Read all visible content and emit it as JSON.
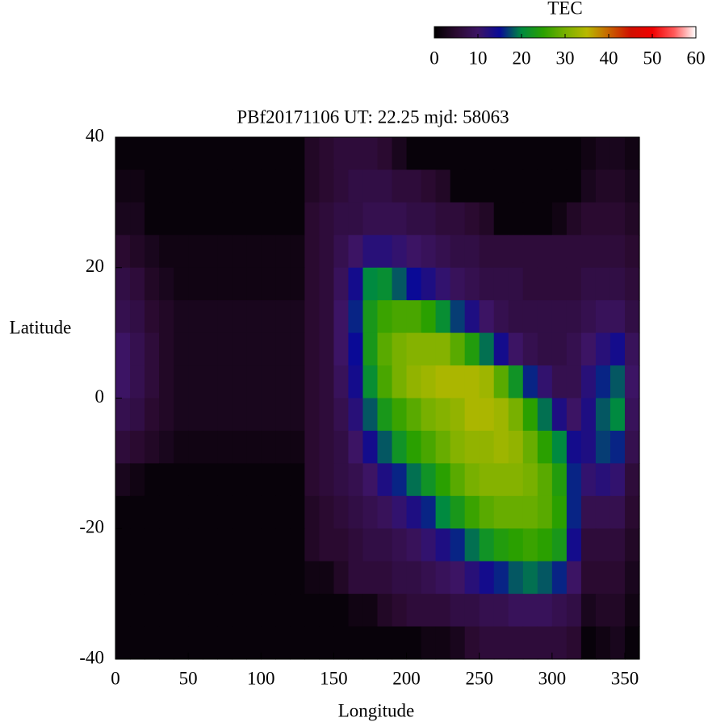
{
  "chart_data": {
    "type": "heatmap",
    "title": "PBf20171106  UT: 22.25  mjd: 58063",
    "xlabel": "Longitude",
    "ylabel": "Latitude",
    "xlim": [
      0,
      360
    ],
    "ylim": [
      -40,
      40
    ],
    "xticks": [
      0,
      50,
      100,
      150,
      200,
      250,
      300,
      350
    ],
    "yticks": [
      -40,
      -20,
      0,
      20,
      40
    ],
    "x": [
      5,
      15,
      25,
      35,
      45,
      55,
      65,
      75,
      85,
      95,
      105,
      115,
      125,
      135,
      145,
      155,
      165,
      175,
      185,
      195,
      205,
      215,
      225,
      235,
      245,
      255,
      265,
      275,
      285,
      295,
      305,
      315,
      325,
      335,
      345,
      355
    ],
    "y": [
      37.5,
      32.5,
      27.5,
      22.5,
      17.5,
      12.5,
      7.5,
      2.5,
      -2.5,
      -7.5,
      -12.5,
      -17.5,
      -22.5,
      -27.5,
      -32.5,
      -37.5
    ],
    "values": [
      [
        1,
        1,
        1,
        1,
        1,
        1,
        1,
        1,
        1,
        1,
        1,
        1,
        1,
        4,
        5,
        6,
        6,
        6,
        5,
        3,
        1,
        1,
        1,
        1,
        1,
        1,
        1,
        1,
        1,
        1,
        1,
        1,
        2,
        3,
        3,
        2
      ],
      [
        2,
        2,
        1,
        1,
        1,
        1,
        1,
        1,
        1,
        1,
        1,
        1,
        1,
        4,
        5,
        6,
        7,
        7,
        7,
        6,
        6,
        5,
        4,
        1,
        1,
        1,
        1,
        1,
        1,
        1,
        1,
        1,
        3,
        4,
        4,
        3
      ],
      [
        3,
        3,
        1,
        1,
        1,
        1,
        1,
        1,
        1,
        1,
        1,
        1,
        1,
        5,
        6,
        7,
        7,
        8,
        8,
        8,
        7,
        7,
        6,
        6,
        5,
        4,
        1,
        1,
        1,
        1,
        2,
        4,
        5,
        5,
        5,
        4
      ],
      [
        5,
        4,
        3,
        2,
        2,
        2,
        2,
        2,
        2,
        2,
        2,
        2,
        2,
        5,
        6,
        8,
        10,
        12,
        12,
        11,
        10,
        9,
        8,
        7,
        7,
        6,
        6,
        6,
        6,
        6,
        6,
        6,
        6,
        6,
        6,
        5
      ],
      [
        7,
        6,
        4,
        3,
        2,
        2,
        2,
        2,
        2,
        2,
        2,
        2,
        2,
        5,
        6,
        9,
        14,
        20,
        21,
        18,
        15,
        13,
        11,
        9,
        8,
        7,
        7,
        7,
        6,
        6,
        6,
        6,
        7,
        7,
        7,
        6
      ],
      [
        8,
        7,
        5,
        4,
        3,
        3,
        3,
        3,
        3,
        3,
        3,
        3,
        3,
        5,
        6,
        10,
        16,
        23,
        26,
        27,
        27,
        25,
        21,
        17,
        13,
        10,
        8,
        7,
        7,
        7,
        7,
        7,
        8,
        9,
        9,
        7
      ],
      [
        10,
        8,
        6,
        4,
        3,
        3,
        3,
        3,
        3,
        3,
        3,
        3,
        3,
        5,
        6,
        10,
        15,
        23,
        28,
        30,
        31,
        31,
        31,
        28,
        24,
        19,
        14,
        10,
        8,
        7,
        7,
        8,
        10,
        12,
        14,
        9
      ],
      [
        10,
        8,
        6,
        4,
        3,
        3,
        3,
        3,
        3,
        3,
        3,
        3,
        3,
        5,
        6,
        9,
        14,
        21,
        27,
        30,
        32,
        33,
        34,
        34,
        34,
        33,
        28,
        22,
        16,
        11,
        8,
        8,
        12,
        16,
        18,
        10
      ],
      [
        8,
        7,
        5,
        4,
        3,
        3,
        3,
        3,
        3,
        3,
        3,
        3,
        3,
        5,
        6,
        8,
        12,
        18,
        23,
        26,
        28,
        30,
        31,
        32,
        34,
        34,
        33,
        30,
        25,
        19,
        13,
        10,
        13,
        18,
        20,
        9
      ],
      [
        6,
        5,
        4,
        3,
        2,
        2,
        2,
        2,
        2,
        2,
        2,
        2,
        2,
        5,
        6,
        7,
        10,
        14,
        18,
        22,
        25,
        27,
        29,
        31,
        32,
        32,
        33,
        32,
        29,
        25,
        20,
        14,
        13,
        17,
        16,
        8
      ],
      [
        3,
        2,
        1,
        1,
        1,
        1,
        1,
        1,
        1,
        1,
        1,
        1,
        1,
        5,
        6,
        7,
        8,
        10,
        13,
        16,
        19,
        22,
        25,
        28,
        30,
        31,
        31,
        31,
        30,
        28,
        24,
        16,
        11,
        12,
        11,
        6
      ],
      [
        1,
        1,
        1,
        1,
        1,
        1,
        1,
        1,
        1,
        1,
        1,
        1,
        1,
        4,
        5,
        6,
        7,
        8,
        9,
        11,
        13,
        16,
        20,
        23,
        26,
        28,
        29,
        29,
        29,
        28,
        25,
        16,
        8,
        8,
        8,
        5
      ],
      [
        1,
        1,
        1,
        1,
        1,
        1,
        1,
        1,
        1,
        1,
        1,
        1,
        1,
        4,
        5,
        5,
        6,
        7,
        7,
        8,
        9,
        11,
        13,
        16,
        19,
        22,
        24,
        25,
        26,
        25,
        23,
        14,
        6,
        6,
        6,
        4
      ],
      [
        1,
        1,
        1,
        1,
        1,
        1,
        1,
        1,
        1,
        1,
        1,
        1,
        1,
        2,
        2,
        4,
        6,
        6,
        6,
        7,
        7,
        8,
        9,
        10,
        12,
        14,
        16,
        18,
        19,
        18,
        16,
        10,
        5,
        5,
        5,
        3
      ],
      [
        1,
        1,
        1,
        1,
        1,
        1,
        1,
        1,
        1,
        1,
        1,
        1,
        1,
        1,
        1,
        1,
        2,
        2,
        4,
        5,
        6,
        6,
        6,
        7,
        7,
        8,
        8,
        9,
        9,
        9,
        8,
        7,
        3,
        4,
        4,
        2
      ],
      [
        1,
        1,
        1,
        1,
        1,
        1,
        1,
        1,
        1,
        1,
        1,
        1,
        1,
        1,
        1,
        1,
        1,
        1,
        1,
        1,
        1,
        2,
        2,
        3,
        5,
        6,
        6,
        6,
        6,
        6,
        6,
        5,
        1,
        2,
        3,
        1
      ]
    ],
    "colorbar": {
      "title": "TEC",
      "lim": [
        0,
        60
      ],
      "ticks": [
        0,
        10,
        20,
        30,
        40,
        50,
        60
      ]
    },
    "colormap": [
      [
        0,
        "#000000"
      ],
      [
        5,
        "#2a0a30"
      ],
      [
        10,
        "#3c1464"
      ],
      [
        15,
        "#0a0a96"
      ],
      [
        20,
        "#008a40"
      ],
      [
        25,
        "#2aa000"
      ],
      [
        30,
        "#78b000"
      ],
      [
        35,
        "#b8b800"
      ],
      [
        40,
        "#c86400"
      ],
      [
        45,
        "#d01000"
      ],
      [
        50,
        "#f00000"
      ],
      [
        55,
        "#ff5a5a"
      ],
      [
        60,
        "#ffffff"
      ]
    ]
  }
}
